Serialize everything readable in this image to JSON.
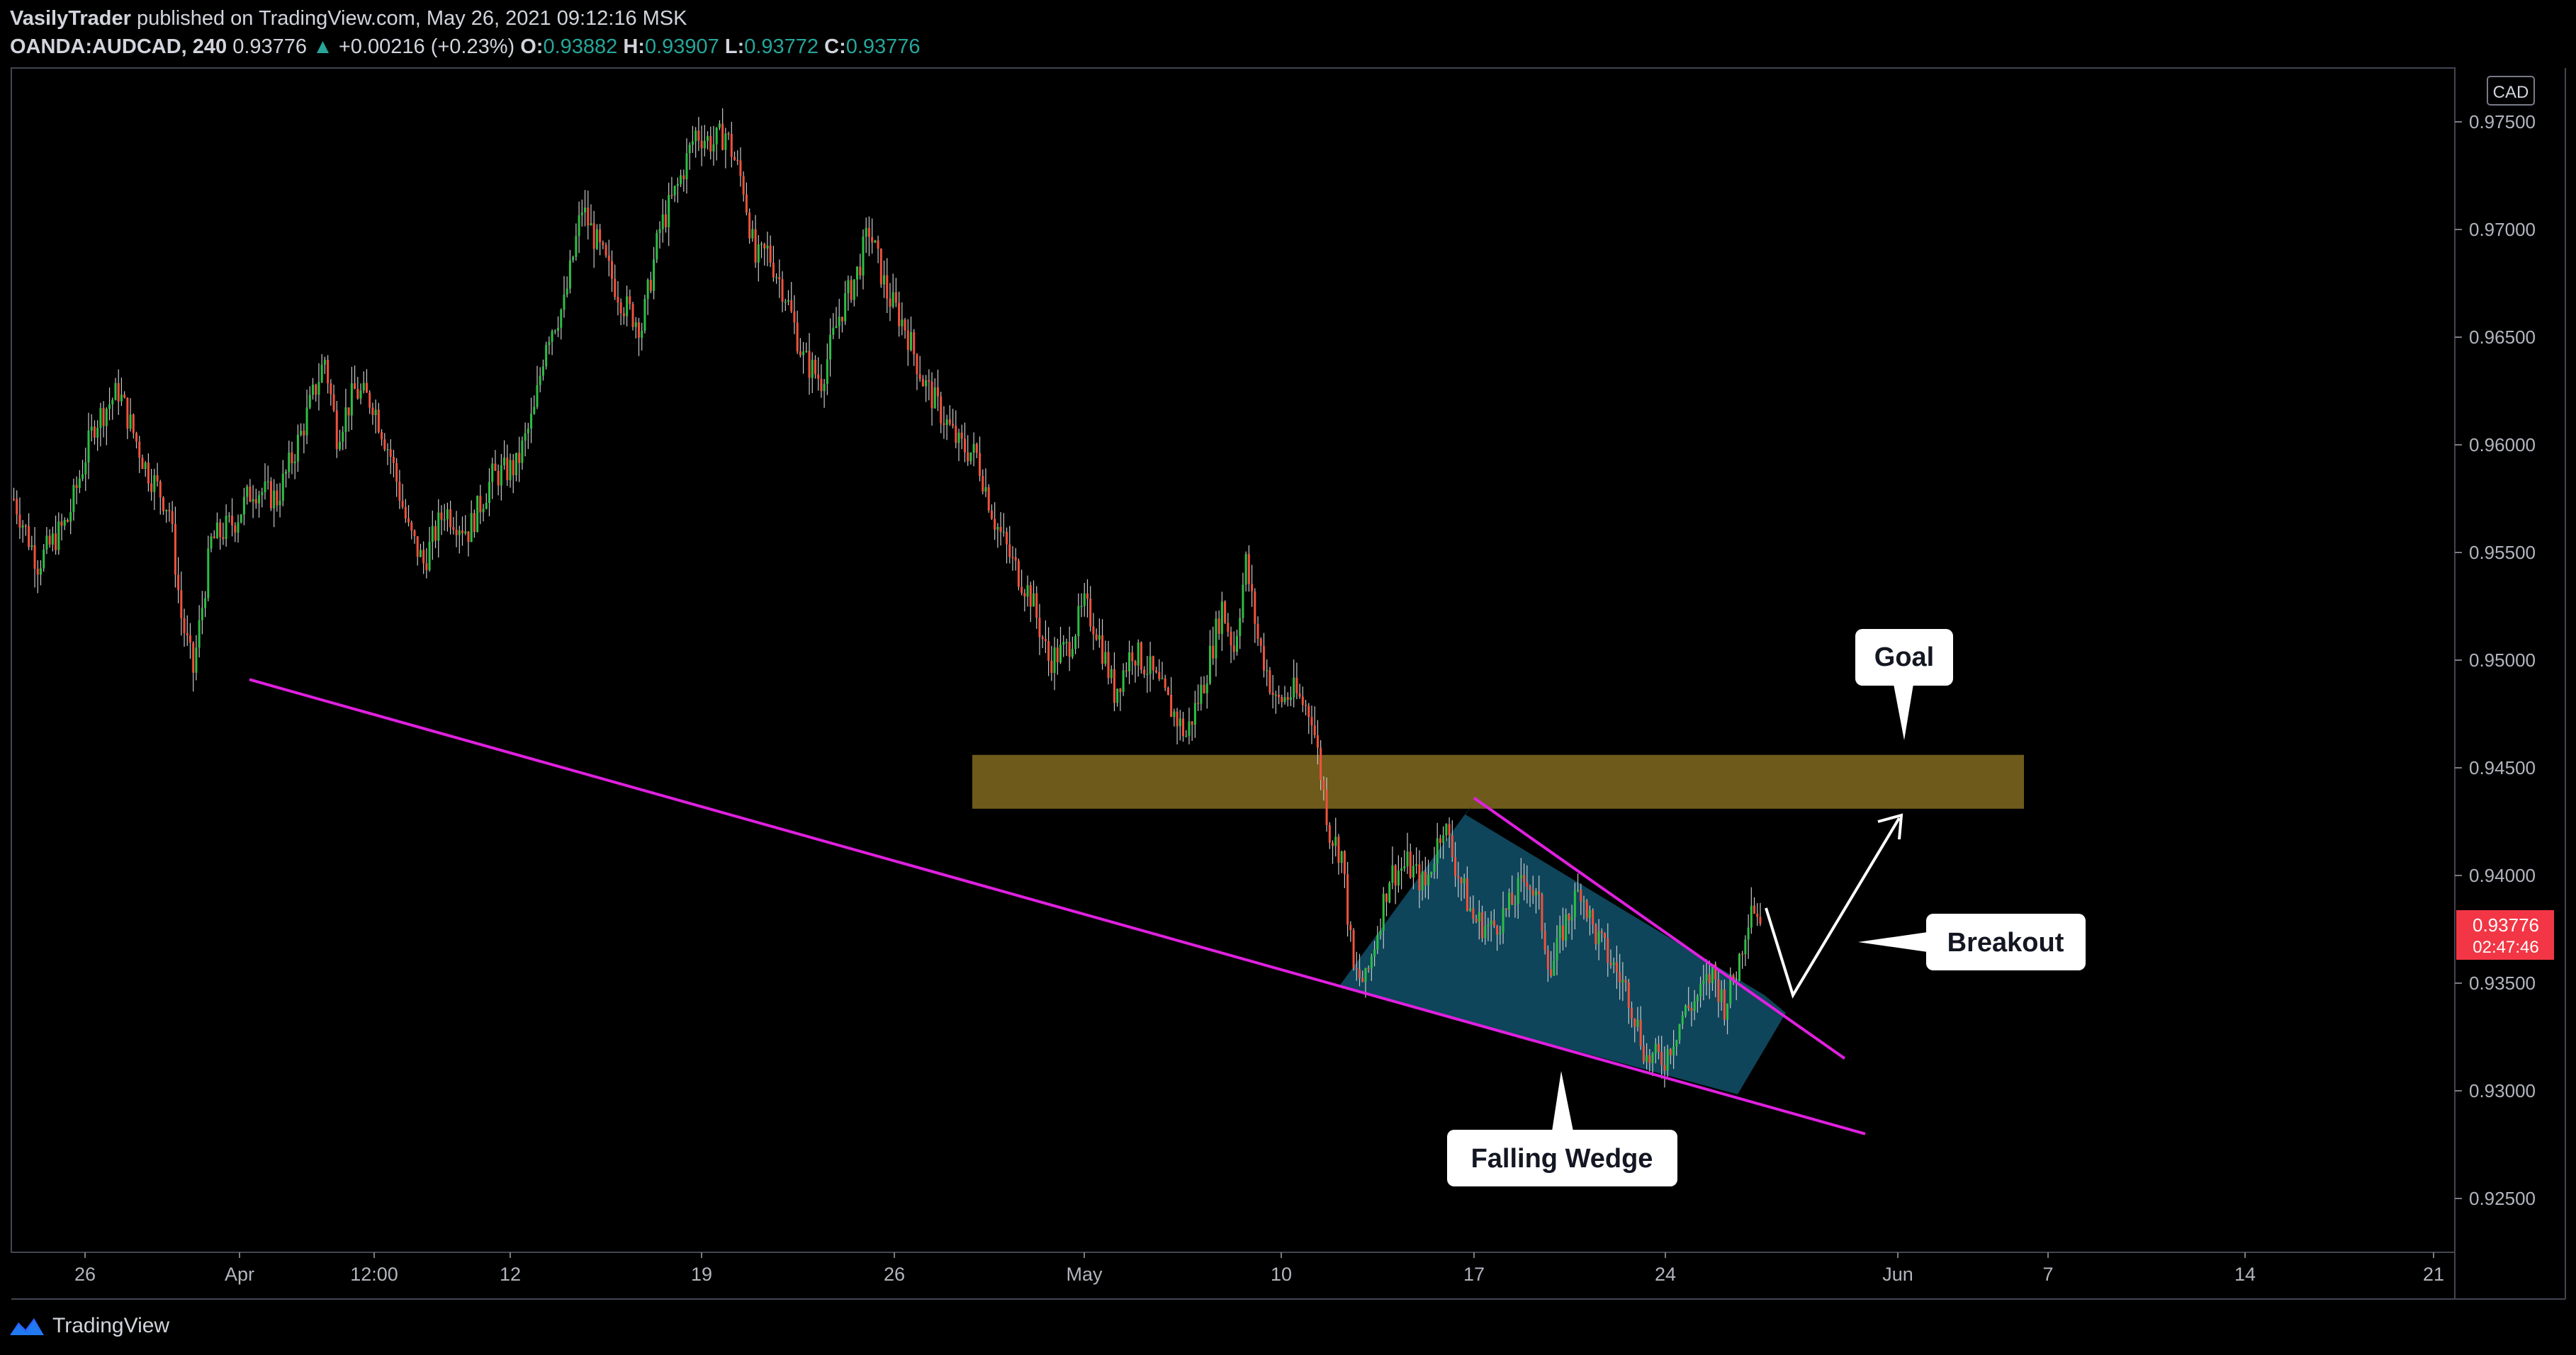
{
  "header": {
    "author": "VasilyTrader",
    "published": "published on TradingView.com, May 26, 2021 09:12:16 MSK",
    "symbol": "OANDA:AUDCAD, 240",
    "last": "0.93776",
    "change_arrow": "▲",
    "change": "+0.00216 (+0.23%)",
    "o_label": "O:",
    "o_value": "0.93882",
    "h_label": "H:",
    "h_value": "0.93907",
    "l_label": "L:",
    "l_value": "0.93772",
    "c_label": "C:",
    "c_value": "0.93776"
  },
  "currency_badge": "CAD",
  "price_tag": {
    "price": "0.93776",
    "countdown": "02:47:46",
    "color": "#f23645"
  },
  "annotations": {
    "goal": "Goal",
    "breakout": "Breakout",
    "wedge": "Falling Wedge"
  },
  "footer": {
    "brand": "TradingView",
    "logo_icon": "tradingview-logo-icon"
  },
  "colors": {
    "up": "#2ebd45",
    "down": "#f0523d",
    "trendline": "#e020e0",
    "zone": "#6e5a1a",
    "wedge_fill": "#0f4c64"
  },
  "chart_data": {
    "type": "candlestick",
    "ylim": [
      0.9225,
      0.9775
    ],
    "y_ticks": [
      "0.97500",
      "0.97000",
      "0.96500",
      "0.96000",
      "0.95500",
      "0.95000",
      "0.94500",
      "0.94000",
      "0.93500",
      "0.93000",
      "0.92500"
    ],
    "x_ticks": [
      "26",
      "Apr",
      "12:00",
      "12",
      "19",
      "26",
      "May",
      "10",
      "17",
      "24",
      "Jun",
      "7",
      "14",
      "21"
    ],
    "resistance_zone": {
      "from": 0.9431,
      "to": 0.9456
    },
    "close_path": [
      [
        0,
        0.9575
      ],
      [
        8,
        0.9545
      ],
      [
        18,
        0.9565
      ],
      [
        27,
        0.961
      ],
      [
        35,
        0.9625
      ],
      [
        44,
        0.959
      ],
      [
        52,
        0.957
      ],
      [
        56,
        0.952
      ],
      [
        60,
        0.9495
      ],
      [
        66,
        0.9555
      ],
      [
        74,
        0.9565
      ],
      [
        80,
        0.958
      ],
      [
        88,
        0.9575
      ],
      [
        96,
        0.9605
      ],
      [
        104,
        0.964
      ],
      [
        108,
        0.9605
      ],
      [
        114,
        0.9625
      ],
      [
        120,
        0.962
      ],
      [
        126,
        0.9595
      ],
      [
        132,
        0.956
      ],
      [
        137,
        0.9545
      ],
      [
        144,
        0.957
      ],
      [
        152,
        0.956
      ],
      [
        160,
        0.9585
      ],
      [
        168,
        0.959
      ],
      [
        174,
        0.9615
      ],
      [
        178,
        0.965
      ],
      [
        184,
        0.9665
      ],
      [
        190,
        0.971
      ],
      [
        196,
        0.969
      ],
      [
        204,
        0.9665
      ],
      [
        210,
        0.9655
      ],
      [
        216,
        0.97
      ],
      [
        222,
        0.972
      ],
      [
        228,
        0.9745
      ],
      [
        234,
        0.974
      ],
      [
        238,
        0.9745
      ],
      [
        244,
        0.972
      ],
      [
        248,
        0.9685
      ],
      [
        252,
        0.969
      ],
      [
        258,
        0.967
      ],
      [
        264,
        0.964
      ],
      [
        270,
        0.963
      ],
      [
        276,
        0.966
      ],
      [
        282,
        0.968
      ],
      [
        286,
        0.97
      ],
      [
        292,
        0.967
      ],
      [
        298,
        0.9655
      ],
      [
        304,
        0.963
      ],
      [
        310,
        0.9615
      ],
      [
        316,
        0.96
      ],
      [
        322,
        0.9595
      ],
      [
        328,
        0.9565
      ],
      [
        334,
        0.9545
      ],
      [
        340,
        0.953
      ],
      [
        346,
        0.95
      ],
      [
        352,
        0.9505
      ],
      [
        358,
        0.9525
      ],
      [
        362,
        0.9515
      ],
      [
        368,
        0.9485
      ],
      [
        374,
        0.9505
      ],
      [
        380,
        0.9495
      ],
      [
        386,
        0.948
      ],
      [
        392,
        0.9465
      ],
      [
        398,
        0.949
      ],
      [
        404,
        0.9525
      ],
      [
        408,
        0.9505
      ],
      [
        412,
        0.9545
      ],
      [
        416,
        0.951
      ],
      [
        422,
        0.948
      ],
      [
        428,
        0.9485
      ],
      [
        434,
        0.9475
      ],
      [
        440,
        0.942
      ],
      [
        444,
        0.941
      ],
      [
        448,
        0.9355
      ],
      [
        452,
        0.935
      ],
      [
        456,
        0.9375
      ],
      [
        460,
        0.94
      ],
      [
        466,
        0.9405
      ],
      [
        472,
        0.9395
      ],
      [
        478,
        0.9425
      ],
      [
        482,
        0.9405
      ],
      [
        488,
        0.938
      ],
      [
        494,
        0.9375
      ],
      [
        500,
        0.9385
      ],
      [
        506,
        0.94
      ],
      [
        510,
        0.9385
      ],
      [
        514,
        0.9355
      ],
      [
        518,
        0.9375
      ],
      [
        524,
        0.9395
      ],
      [
        528,
        0.9375
      ],
      [
        534,
        0.936
      ],
      [
        540,
        0.9345
      ],
      [
        546,
        0.9315
      ],
      [
        552,
        0.9315
      ],
      [
        558,
        0.9335
      ],
      [
        564,
        0.9345
      ],
      [
        568,
        0.9355
      ],
      [
        572,
        0.934
      ],
      [
        576,
        0.9355
      ],
      [
        581,
        0.9389
      ],
      [
        584,
        0.9378
      ]
    ],
    "trendlines": [
      {
        "name": "lower",
        "from": [
          60,
          0.9491
        ],
        "to": [
          612,
          0.928
        ]
      },
      {
        "name": "wedge-upper",
        "from": [
          482,
          0.9436
        ],
        "to": [
          608,
          0.9315
        ]
      }
    ]
  }
}
